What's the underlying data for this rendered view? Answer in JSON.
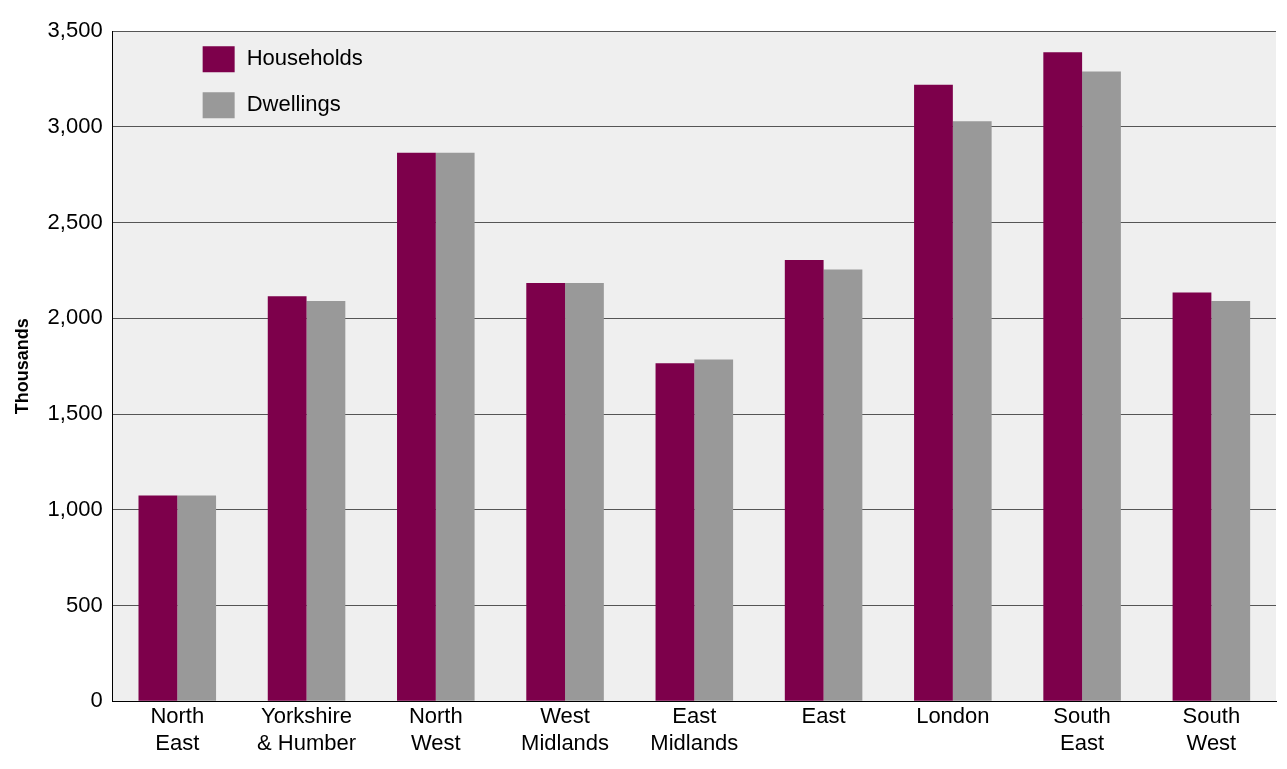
{
  "chart_data": {
    "type": "bar",
    "ylabel": "Thousands",
    "categories": [
      "North East",
      "Yorkshire & Humber",
      "North West",
      "West Midlands",
      "East Midlands",
      "East",
      "London",
      "South East",
      "South West"
    ],
    "series": [
      {
        "name": "Households",
        "color": "#7d004b",
        "values": [
          1075,
          2115,
          2865,
          2185,
          1765,
          2305,
          3220,
          3390,
          2135
        ]
      },
      {
        "name": "Dwellings",
        "color": "#999999",
        "values": [
          1075,
          2090,
          2865,
          2185,
          1785,
          2255,
          3030,
          3290,
          2090
        ]
      }
    ],
    "ylim": [
      0,
      3500
    ],
    "yticks": [
      {
        "value": 0,
        "label": "0"
      },
      {
        "value": 500,
        "label": "500"
      },
      {
        "value": 1000,
        "label": "1,000"
      },
      {
        "value": 1500,
        "label": "1,500"
      },
      {
        "value": 2000,
        "label": "2,000"
      },
      {
        "value": 2500,
        "label": "2,500"
      },
      {
        "value": 3000,
        "label": "3,000"
      },
      {
        "value": 3500,
        "label": "3,500"
      }
    ],
    "grid": "y",
    "legend": "top left"
  }
}
